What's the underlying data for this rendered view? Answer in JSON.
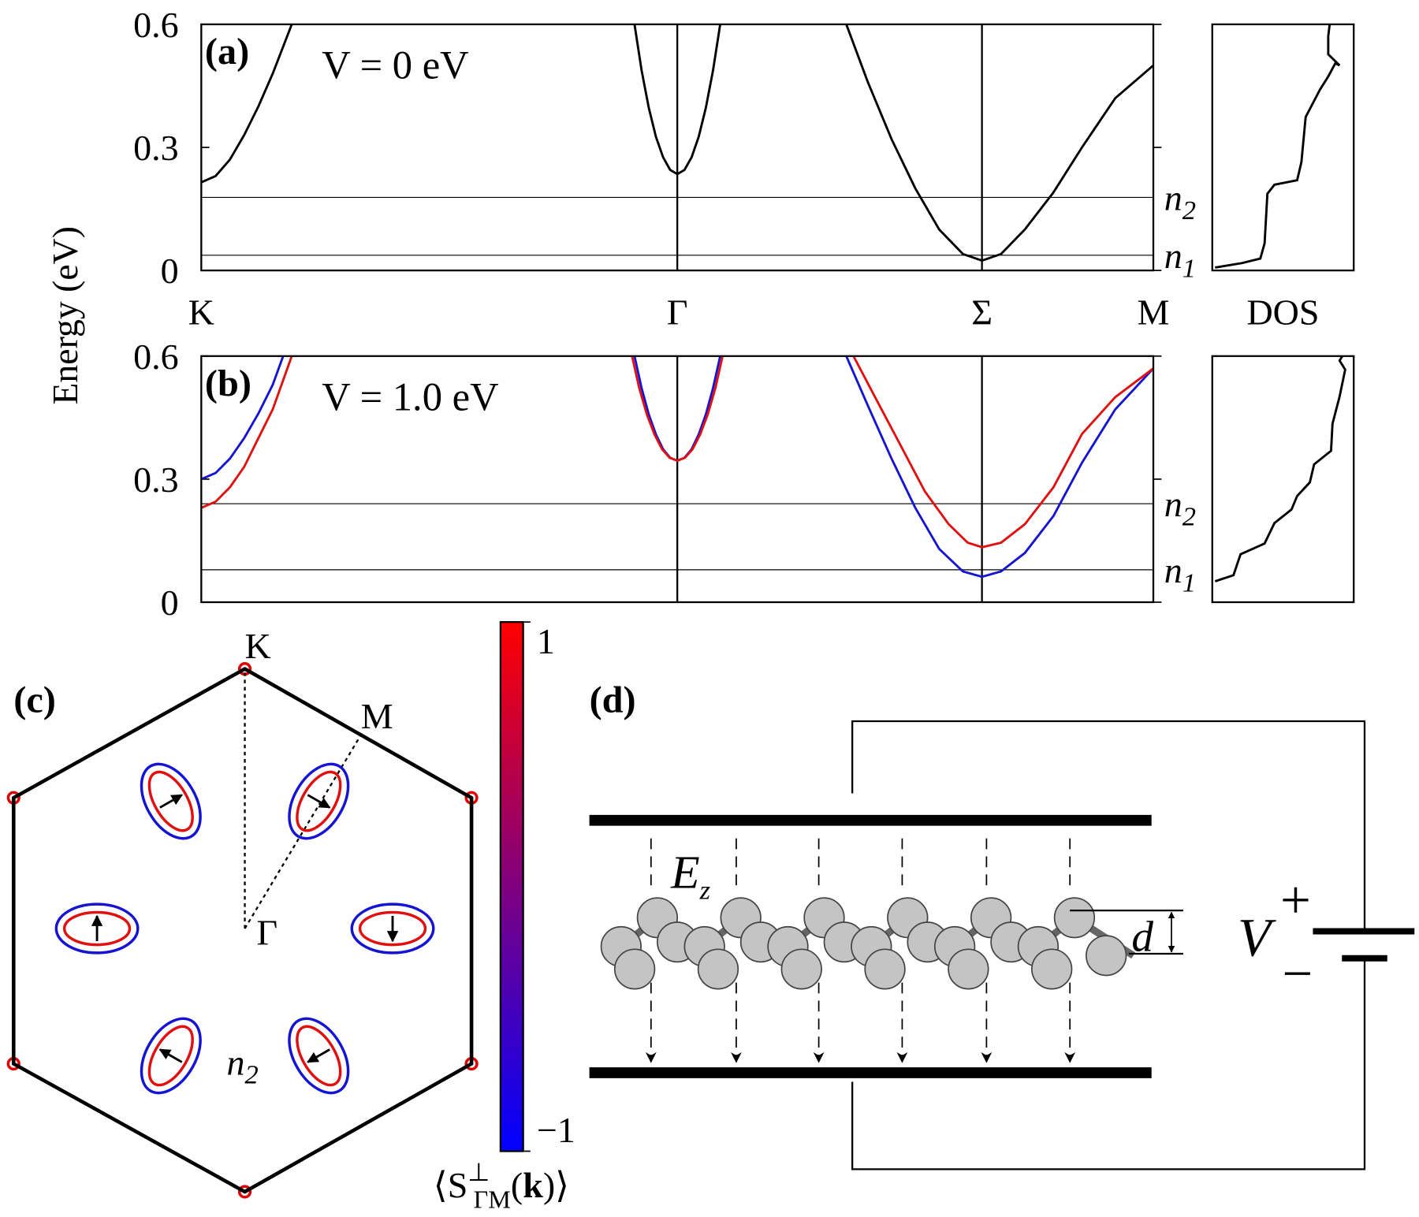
{
  "ylabel": "Energy (eV)",
  "chart_data": [
    {
      "type": "line",
      "label": "(a)",
      "annotation": "V = 0 eV",
      "xlim": [
        0,
        2
      ],
      "ylim": [
        0,
        0.6
      ],
      "yticks": [
        0,
        0.3,
        0.6
      ],
      "xticks": [
        {
          "value": 0,
          "label": "K"
        },
        {
          "value": 1,
          "label": "Γ"
        },
        {
          "value": 1.64,
          "label": "Σ"
        },
        {
          "value": 2,
          "label": "M"
        }
      ],
      "hlines": [
        {
          "value": 0.178,
          "label": "n",
          "sub": "2"
        },
        {
          "value": 0.037,
          "label": "n",
          "sub": "1"
        }
      ],
      "series": [
        {
          "color": "#000000",
          "x": [
            0,
            0.03,
            0.06,
            0.09,
            0.12,
            0.15,
            0.19,
            null,
            0.91,
            0.925,
            0.94,
            0.955,
            0.97,
            0.985,
            1,
            1.015,
            1.03,
            1.045,
            1.06,
            1.075,
            1.09,
            null,
            1.355,
            1.4,
            1.45,
            1.5,
            1.55,
            1.6,
            1.64,
            1.68,
            1.73,
            1.79,
            1.85,
            1.92,
            2
          ],
          "values": [
            0.215,
            0.23,
            0.27,
            0.33,
            0.4,
            0.48,
            0.6,
            null,
            0.6,
            0.488,
            0.397,
            0.326,
            0.276,
            0.245,
            0.235,
            0.245,
            0.276,
            0.326,
            0.397,
            0.488,
            0.6,
            null,
            0.6,
            0.46,
            0.32,
            0.2,
            0.1,
            0.04,
            0.024,
            0.04,
            0.1,
            0.19,
            0.3,
            0.42,
            0.5
          ]
        }
      ]
    },
    {
      "type": "line",
      "xlabel": "DOS",
      "xlim": [
        0,
        1
      ],
      "ylim": [
        0,
        0.6
      ],
      "series": [
        {
          "color": "#000000",
          "x": [
            0.02,
            0.21,
            0.34,
            0.37,
            0.39,
            0.44,
            0.6,
            0.63,
            0.66,
            0.76,
            0.82,
            0.87,
            0.9,
            0.82,
            0.82,
            0.83
          ],
          "values": [
            0.007,
            0.018,
            0.029,
            0.066,
            0.187,
            0.209,
            0.22,
            0.264,
            0.374,
            0.44,
            0.473,
            0.505,
            0.5,
            0.527,
            0.571,
            0.6
          ]
        }
      ]
    },
    {
      "type": "line",
      "label": "(b)",
      "annotation": "V = 1.0 eV",
      "xlim": [
        0,
        2
      ],
      "ylim": [
        0,
        0.6
      ],
      "yticks": [
        0,
        0.3,
        0.6
      ],
      "vlines": [
        1,
        1.64
      ],
      "hlines": [
        {
          "value": 0.24,
          "label": "n",
          "sub": "2"
        },
        {
          "value": 0.079,
          "label": "n",
          "sub": "1"
        }
      ],
      "series": [
        {
          "color": "#1414d2",
          "x": [
            0,
            0.03,
            0.06,
            0.09,
            0.12,
            0.15,
            0.172,
            null,
            0.91,
            0.925,
            0.94,
            0.955,
            0.97,
            0.985,
            1,
            1.015,
            1.03,
            1.045,
            1.06,
            1.075,
            1.09,
            null,
            1.355,
            1.4,
            1.45,
            1.5,
            1.55,
            1.6,
            1.64,
            1.68,
            1.73,
            1.79,
            1.85,
            1.92,
            2
          ],
          "values": [
            0.3,
            0.315,
            0.35,
            0.4,
            0.46,
            0.53,
            0.6,
            null,
            0.6,
            0.522,
            0.458,
            0.409,
            0.373,
            0.352,
            0.345,
            0.352,
            0.373,
            0.409,
            0.458,
            0.522,
            0.6,
            null,
            0.6,
            0.48,
            0.35,
            0.23,
            0.13,
            0.075,
            0.062,
            0.075,
            0.12,
            0.21,
            0.34,
            0.47,
            0.57
          ]
        },
        {
          "color": "#e01010",
          "x": [
            0,
            0.03,
            0.06,
            0.09,
            0.12,
            0.15,
            0.19,
            null,
            0.905,
            0.92,
            0.936,
            0.952,
            0.968,
            0.984,
            1,
            1.016,
            1.032,
            1.048,
            1.064,
            1.08,
            1.095,
            null,
            1.37,
            1.42,
            1.47,
            1.52,
            1.57,
            1.61,
            1.64,
            1.68,
            1.73,
            1.79,
            1.85,
            1.92,
            2
          ],
          "values": [
            0.23,
            0.245,
            0.28,
            0.33,
            0.4,
            0.47,
            0.6,
            null,
            0.6,
            0.522,
            0.458,
            0.409,
            0.373,
            0.352,
            0.345,
            0.352,
            0.373,
            0.409,
            0.458,
            0.522,
            0.6,
            null,
            0.6,
            0.49,
            0.38,
            0.27,
            0.19,
            0.145,
            0.134,
            0.145,
            0.19,
            0.28,
            0.41,
            0.5,
            0.57
          ]
        }
      ]
    },
    {
      "type": "line",
      "xlim": [
        0,
        1
      ],
      "ylim": [
        0,
        0.6
      ],
      "series": [
        {
          "color": "#000000",
          "x": [
            0.02,
            0.15,
            0.2,
            0.37,
            0.44,
            0.56,
            0.6,
            0.69,
            0.72,
            0.84,
            0.85,
            0.9,
            0.94,
            0.9,
            0.92
          ],
          "values": [
            0.051,
            0.066,
            0.117,
            0.143,
            0.193,
            0.226,
            0.259,
            0.292,
            0.336,
            0.369,
            0.435,
            0.501,
            0.567,
            0.589,
            0.6
          ]
        }
      ]
    }
  ],
  "panel_c": {
    "label": "(c)",
    "points": [
      "K",
      "M",
      "Γ"
    ],
    "fermi_label": {
      "base": "n",
      "sub": "2"
    },
    "colorbar": {
      "clim": [
        -1,
        1
      ],
      "colors": [
        "#0000ff",
        "#ff0000"
      ],
      "ticks": [
        1,
        {
          "value": -1,
          "label": "−1"
        }
      ],
      "label": {
        "open": "⟨S",
        "sup": "⊥",
        "sub": "ΓM",
        "paren": "(",
        "k": "k",
        "close": ")⟩"
      }
    }
  },
  "panel_d": {
    "label": "(d)",
    "field": {
      "base": "E",
      "sub": "z"
    },
    "spacing": "d",
    "voltage": "V",
    "plus": "+",
    "minus": "−"
  }
}
